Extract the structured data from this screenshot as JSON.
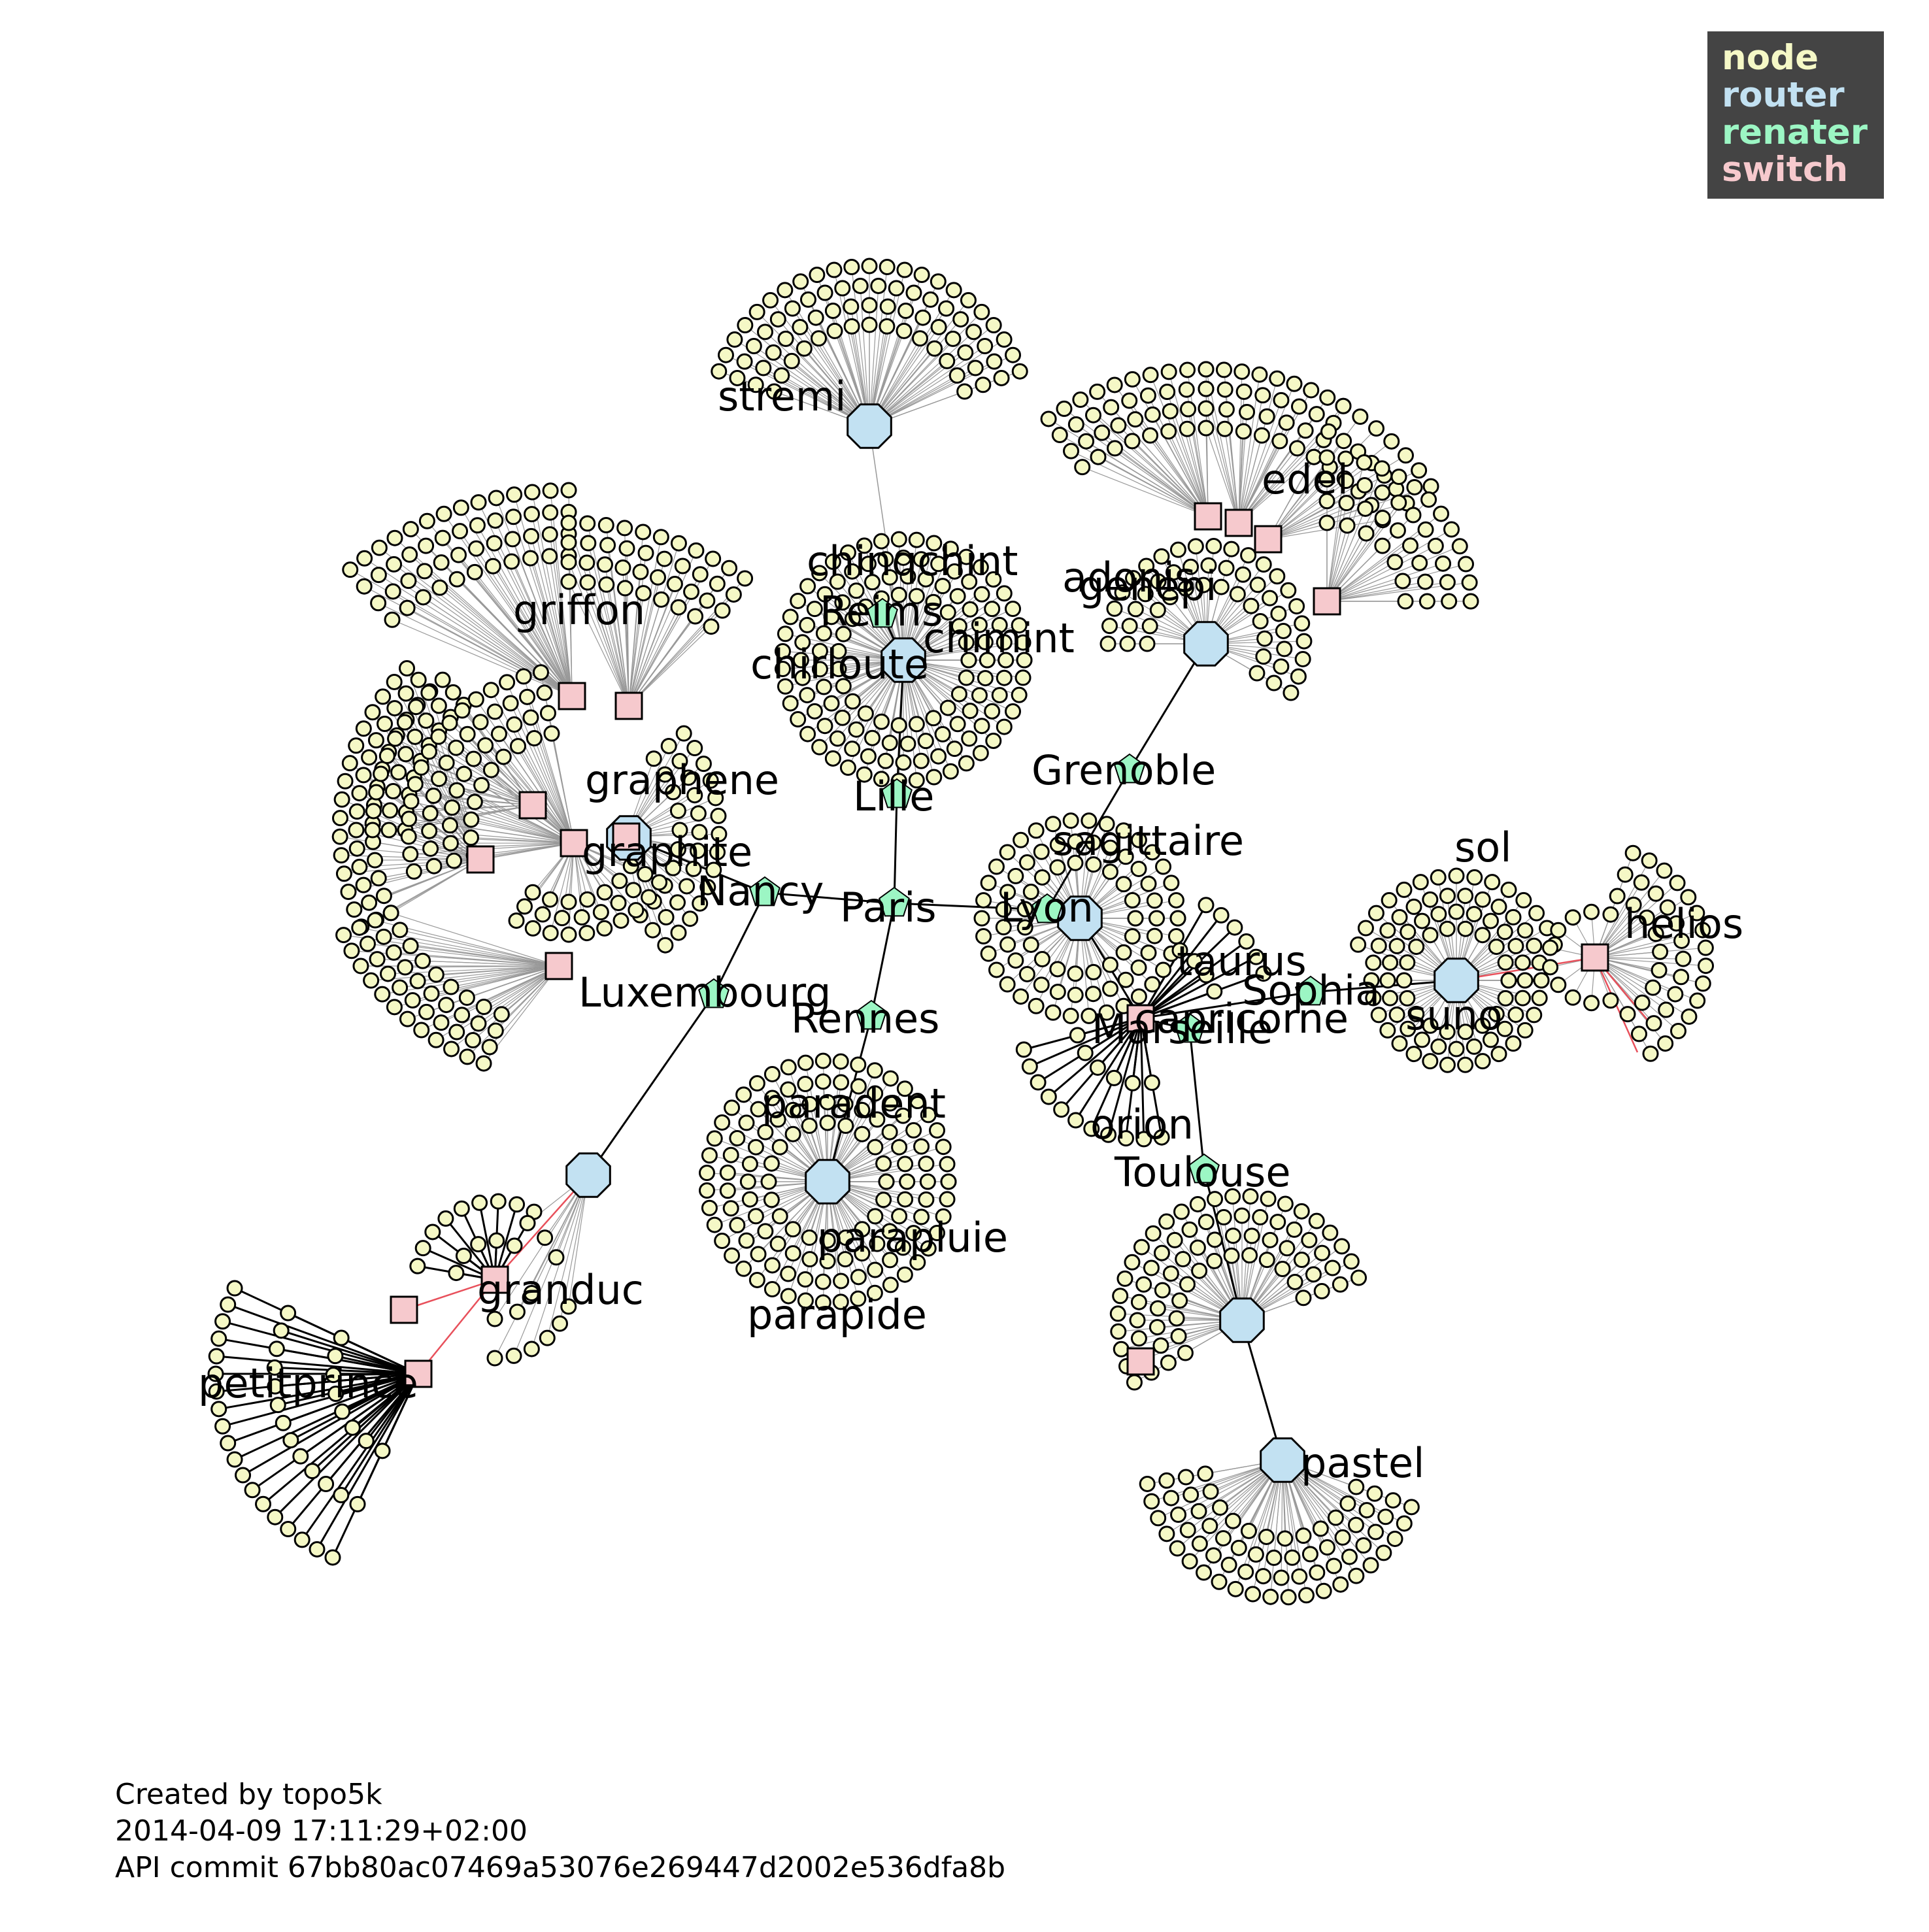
{
  "legend": {
    "items": [
      {
        "label": "node",
        "color": "#f5f8c6"
      },
      {
        "label": "router",
        "color": "#c2e1f2"
      },
      {
        "label": "renater",
        "color": "#9cf6c4"
      },
      {
        "label": "switch",
        "color": "#f6c9cd"
      }
    ]
  },
  "colors": {
    "node": "#f5f8c6",
    "router": "#c2e1f2",
    "renater": "#9cf6c4",
    "switch": "#f6c9cd",
    "edge_backbone": "#000000",
    "edge_leaf": "#999999",
    "edge_red": "#e8505b",
    "legend_bg": "#444444"
  },
  "labels": {
    "stremi": "stremi",
    "edel": "edel",
    "chinqchint": "chinqchint",
    "adonis": "adonis",
    "genepi": "genepi",
    "reims": "Reims",
    "chimint": "chimint",
    "chirloute": "chirloute",
    "griffon": "griffon",
    "graphene": "graphene",
    "grenoble": "Grenoble",
    "lille": "Lille",
    "graphite": "graphite",
    "sagittaire": "sagittaire",
    "sol": "sol",
    "nancy": "Nancy",
    "paris": "Paris",
    "lyon": "Lyon",
    "helios": "helios",
    "taurus": "taurus",
    "sophia": "Sophia",
    "luxembourg": "Luxembourg",
    "rennes": "Rennes",
    "suno": "suno",
    "marseille": "Marseille",
    "capricorne": "capricorne",
    "paradent": "paradent",
    "orion": "orion",
    "toulouse": "Toulouse",
    "parapluie": "parapluie",
    "granduc": "granduc",
    "parapide": "parapide",
    "petitprince": "petitprince",
    "pastel": "pastel"
  },
  "credits": {
    "line1": "Created by topo5k",
    "line2": "2014-04-09 17:11:29+02:00",
    "line3": "API commit 67bb80ac07469a53076e269447d2002e536dfa8b"
  }
}
